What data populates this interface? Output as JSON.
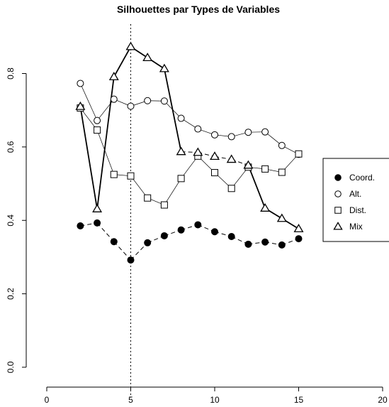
{
  "chart_data": {
    "type": "line",
    "title": "Silhouettes par Types de Variables",
    "xlabel": "",
    "ylabel": "",
    "xlim": [
      0,
      20
    ],
    "ylim": [
      0,
      0.9
    ],
    "x_ticks": [
      0,
      5,
      10,
      15,
      20
    ],
    "y_ticks": [
      0.0,
      0.2,
      0.4,
      0.6,
      0.8
    ],
    "x_tick_labels": [
      "0",
      "5",
      "10",
      "15",
      "20"
    ],
    "y_tick_labels": [
      "0.0",
      "0.2",
      "0.4",
      "0.6",
      "0.8"
    ],
    "vertical_reference_line": {
      "x": 5,
      "style": "dotted"
    },
    "grid": false,
    "legend_position": "right",
    "x": [
      2,
      3,
      4,
      5,
      6,
      7,
      8,
      9,
      10,
      11,
      12,
      13,
      14,
      15
    ],
    "series": [
      {
        "name": "Coord.",
        "marker": "filled-circle",
        "line": "dashed",
        "values": [
          0.385,
          0.393,
          0.342,
          0.292,
          0.339,
          0.358,
          0.374,
          0.388,
          0.369,
          0.356,
          0.335,
          0.341,
          0.333,
          0.35
        ]
      },
      {
        "name": "Alt.",
        "marker": "open-circle",
        "line": "solid-thin",
        "values": [
          0.773,
          0.672,
          0.73,
          0.711,
          0.726,
          0.725,
          0.678,
          0.649,
          0.633,
          0.628,
          0.64,
          0.641,
          0.604,
          0.58
        ]
      },
      {
        "name": "Dist.",
        "marker": "open-square",
        "line": "solid-thin",
        "values": [
          0.706,
          0.646,
          0.525,
          0.521,
          0.461,
          0.442,
          0.514,
          0.575,
          0.53,
          0.487,
          0.545,
          0.54,
          0.531,
          0.581
        ]
      },
      {
        "name": "Mix",
        "marker": "open-triangle",
        "line": "solid-thick-then-dashed",
        "values": [
          0.71,
          0.431,
          0.791,
          0.873,
          0.843,
          0.813,
          0.587,
          0.585,
          0.574,
          0.566,
          0.55,
          0.433,
          0.405,
          0.377
        ]
      }
    ]
  }
}
